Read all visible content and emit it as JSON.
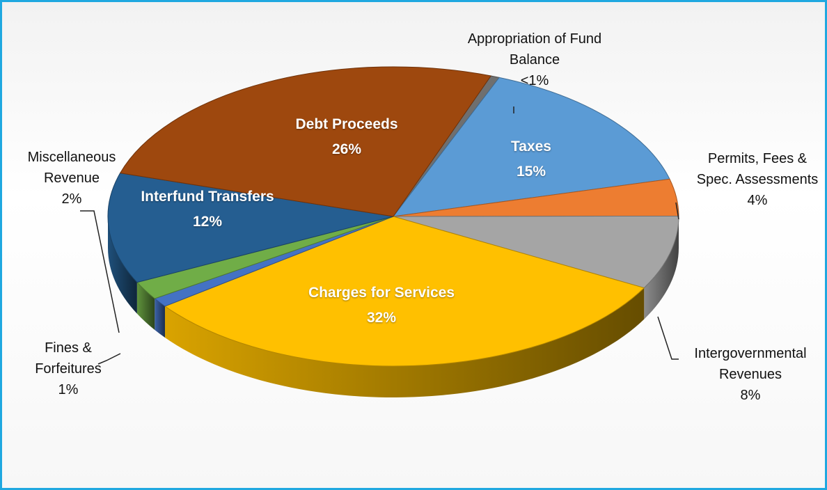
{
  "chart_data": {
    "type": "pie",
    "categories": [
      "Appropriation of Fund Balance",
      "Taxes",
      "Permits, Fees & Spec. Assessments",
      "Intergovernmental Revenues",
      "Charges for Services",
      "Fines & Forfeitures",
      "Miscellaneous Revenue",
      "Interfund Transfers",
      "Debt Proceeds"
    ],
    "values": [
      0.5,
      15,
      4,
      8,
      32,
      1,
      2,
      12,
      26
    ],
    "value_labels": [
      "<1%",
      "15%",
      "4%",
      "8%",
      "32%",
      "1%",
      "2%",
      "12%",
      "26%"
    ],
    "colors": [
      "#6f6f6f",
      "#5b9bd5",
      "#ed7d31",
      "#a5a5a5",
      "#ffc000",
      "#4472c4",
      "#70ad47",
      "#255e91",
      "#9e480e"
    ]
  }
}
